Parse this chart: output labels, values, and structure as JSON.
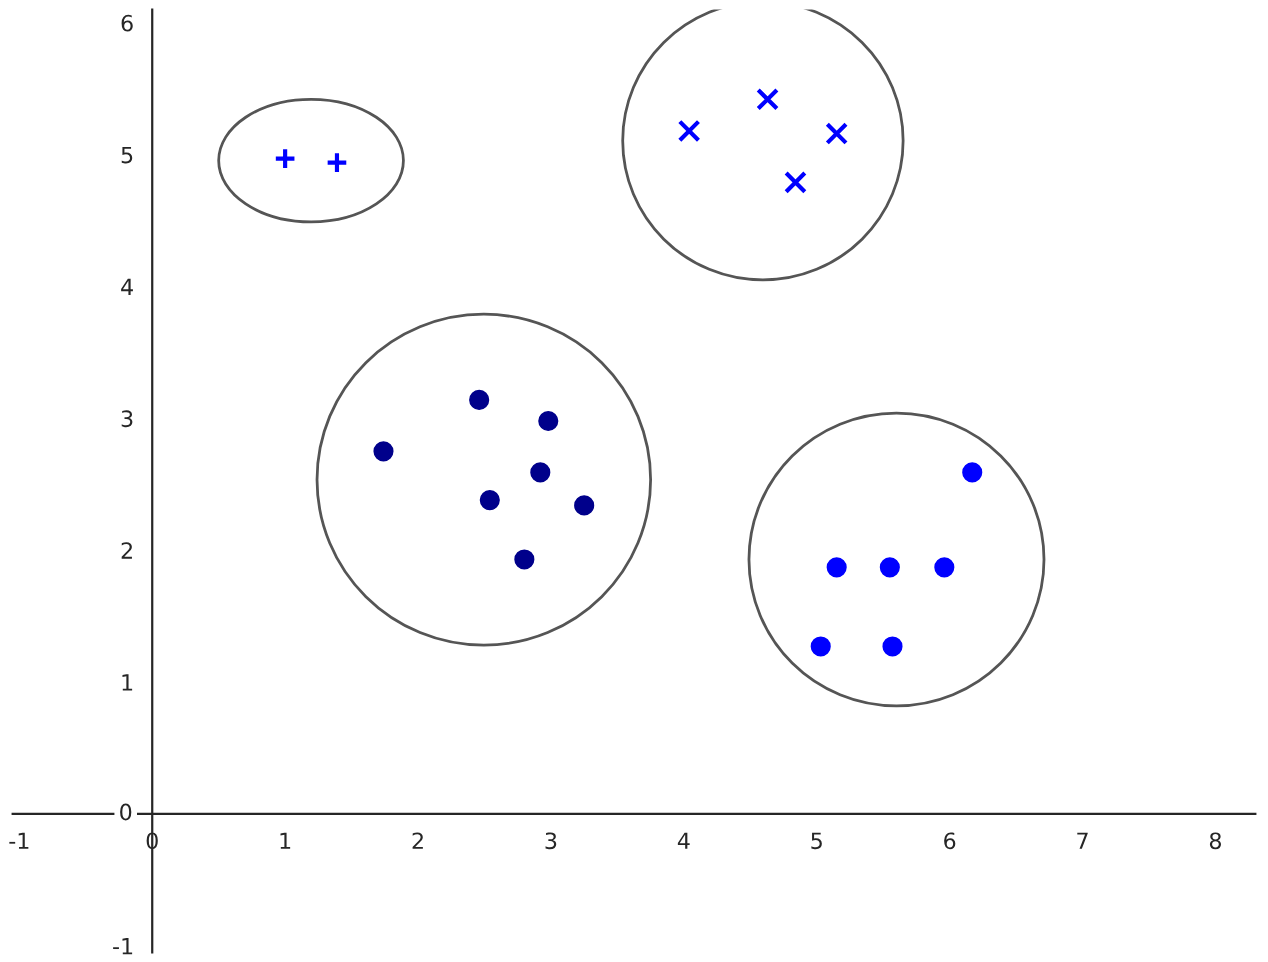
{
  "chart_data": {
    "type": "scatter",
    "xlim": [
      -1.05,
      8.3
    ],
    "ylim": [
      -1.05,
      6.1
    ],
    "xticks": [
      -1,
      0,
      1,
      2,
      3,
      4,
      5,
      6,
      7,
      8
    ],
    "yticks": [
      -1,
      0,
      1,
      2,
      3,
      4,
      5,
      6
    ],
    "grid": false,
    "legend": false,
    "series": [
      {
        "color": "#0000ff",
        "marker": "plus",
        "x": [
          1.0,
          1.39
        ],
        "values": [
          4.97,
          4.94
        ]
      },
      {
        "color": "#0000ff",
        "marker": "cross",
        "x": [
          4.04,
          4.63,
          5.15,
          4.84
        ],
        "values": [
          5.18,
          5.42,
          5.16,
          4.79
        ]
      },
      {
        "color": "#00008b",
        "marker": "circle",
        "x": [
          1.74,
          2.46,
          2.98,
          2.92,
          2.54,
          3.25,
          2.8
        ],
        "values": [
          2.75,
          3.14,
          2.98,
          2.59,
          2.38,
          2.34,
          1.93
        ]
      },
      {
        "color": "#0000ff",
        "marker": "circle",
        "x": [
          6.17,
          5.15,
          5.55,
          5.96,
          5.03,
          5.57
        ],
        "values": [
          2.59,
          1.87,
          1.87,
          1.87,
          1.27,
          1.27
        ]
      }
    ]
  }
}
